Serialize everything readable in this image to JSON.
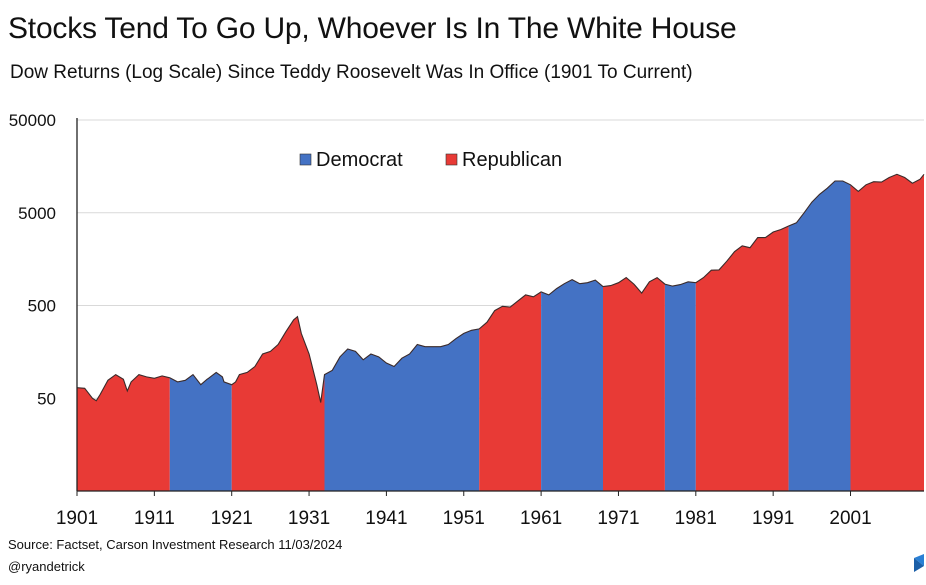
{
  "header": {
    "title": "Stocks Tend To Go Up, Whoever Is In The White House",
    "subtitle": "Dow Returns (Log Scale) Since Teddy Roosevelt Was In Office (1901 To Current)"
  },
  "footer": {
    "source": "Source: Factset, Carson Investment Research 11/03/2024",
    "handle": "@ryandetrick"
  },
  "colors": {
    "democrat": "#4472c4",
    "republican": "#e83a36",
    "axis": "#222222",
    "grid": "#d9d9d9"
  },
  "chart_data": {
    "type": "area",
    "title": "Stocks Tend To Go Up, Whoever Is In The White House",
    "subtitle": "Dow Returns (Log Scale) Since Teddy Roosevelt Was In Office (1901 To Current)",
    "y_scale": "log",
    "ylim": [
      5,
      50000
    ],
    "xlim": [
      1901,
      2010.5
    ],
    "y_ticks": [
      50,
      500,
      5000,
      50000
    ],
    "y_tick_labels": [
      "50",
      "500",
      "5000",
      "50000"
    ],
    "x_ticks": [
      1901,
      1911,
      1921,
      1931,
      1941,
      1951,
      1961,
      1971,
      1981,
      1991,
      2001
    ],
    "x_tick_labels": [
      "1901",
      "1911",
      "1921",
      "1931",
      "1941",
      "1951",
      "1961",
      "1971",
      "1981",
      "1991",
      "2001"
    ],
    "grid": "horizontal",
    "legend": {
      "placement": "top-center",
      "entries": [
        "Democrat",
        "Republican"
      ]
    },
    "periods": [
      {
        "party": "Republican",
        "start": 1901,
        "end": 1913
      },
      {
        "party": "Democrat",
        "start": 1913,
        "end": 1921
      },
      {
        "party": "Republican",
        "start": 1921,
        "end": 1933
      },
      {
        "party": "Democrat",
        "start": 1933,
        "end": 1953
      },
      {
        "party": "Republican",
        "start": 1953,
        "end": 1961
      },
      {
        "party": "Democrat",
        "start": 1961,
        "end": 1969
      },
      {
        "party": "Republican",
        "start": 1969,
        "end": 1977
      },
      {
        "party": "Democrat",
        "start": 1977,
        "end": 1981
      },
      {
        "party": "Republican",
        "start": 1981,
        "end": 1993
      },
      {
        "party": "Democrat",
        "start": 1993,
        "end": 2001
      },
      {
        "party": "Republican",
        "start": 2001,
        "end": 2010.5
      }
    ],
    "series": [
      {
        "name": "Dow",
        "x": [
          1901,
          1902,
          1903,
          1903.5,
          1904,
          1905,
          1906,
          1907,
          1907.5,
          1908,
          1909,
          1910,
          1911,
          1912,
          1913,
          1914,
          1915,
          1916,
          1917,
          1917.8,
          1918,
          1919,
          1919.8,
          1920,
          1921,
          1921.5,
          1922,
          1923,
          1924,
          1925,
          1926,
          1927,
          1928,
          1929,
          1929.5,
          1930,
          1931,
          1932,
          1932.5,
          1933,
          1934,
          1935,
          1936,
          1937,
          1938,
          1939,
          1940,
          1941,
          1942,
          1943,
          1944,
          1945,
          1946,
          1947,
          1948,
          1949,
          1950,
          1951,
          1952,
          1953,
          1954,
          1955,
          1956,
          1957,
          1958,
          1959,
          1960,
          1961,
          1962,
          1963,
          1964,
          1965,
          1966,
          1967,
          1968,
          1969,
          1970,
          1971,
          1972,
          1973,
          1974,
          1975,
          1976,
          1977,
          1978,
          1979,
          1980,
          1981,
          1982,
          1983,
          1984,
          1985,
          1986,
          1987,
          1988,
          1989,
          1990,
          1991,
          1992,
          1993,
          1994,
          1995,
          1996,
          1997,
          1998,
          1999,
          2000,
          2001,
          2002,
          2003,
          2004,
          2005,
          2006,
          2007,
          2008,
          2009,
          2010,
          2010.5
        ],
        "y": [
          65,
          64,
          50,
          47,
          55,
          78,
          90,
          80,
          60,
          75,
          90,
          85,
          82,
          87,
          83,
          75,
          78,
          90,
          70,
          80,
          82,
          95,
          85,
          75,
          70,
          75,
          90,
          95,
          110,
          150,
          160,
          190,
          260,
          350,
          380,
          250,
          150,
          70,
          45,
          90,
          100,
          140,
          170,
          160,
          130,
          150,
          140,
          120,
          110,
          135,
          150,
          190,
          180,
          180,
          180,
          190,
          220,
          250,
          270,
          280,
          330,
          440,
          490,
          480,
          560,
          650,
          620,
          700,
          650,
          760,
          860,
          950,
          860,
          880,
          940,
          800,
          820,
          880,
          1000,
          850,
          680,
          900,
          1000,
          850,
          810,
          840,
          900,
          880,
          1000,
          1200,
          1210,
          1500,
          1900,
          2200,
          2100,
          2700,
          2700,
          3100,
          3300,
          3600,
          3900,
          5000,
          6500,
          7900,
          9200,
          11000,
          11000,
          10000,
          8500,
          10000,
          10800,
          10700,
          12000,
          13000,
          12000,
          10400,
          11500,
          13000
        ]
      }
    ]
  }
}
